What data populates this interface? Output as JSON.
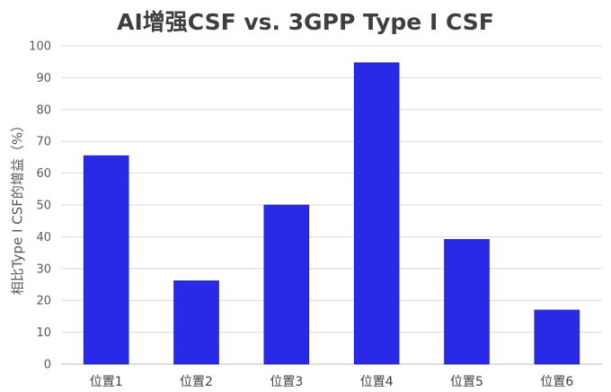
{
  "chart_data": {
    "type": "bar",
    "title": "AI增强CSF vs. 3GPP Type I CSF",
    "xlabel": "",
    "ylabel": "相比Type I CSF的增益（%）",
    "categories": [
      "位置1",
      "位置2",
      "位置3",
      "位置4",
      "位置5",
      "位置6"
    ],
    "values": [
      65.5,
      26.2,
      50.0,
      94.7,
      39.2,
      17.0
    ],
    "ylim": [
      0,
      100
    ],
    "yticks": [
      0,
      10,
      20,
      30,
      40,
      50,
      60,
      70,
      80,
      90,
      100
    ],
    "grid": true,
    "legend": "none",
    "bar_color": "#2929e8"
  }
}
